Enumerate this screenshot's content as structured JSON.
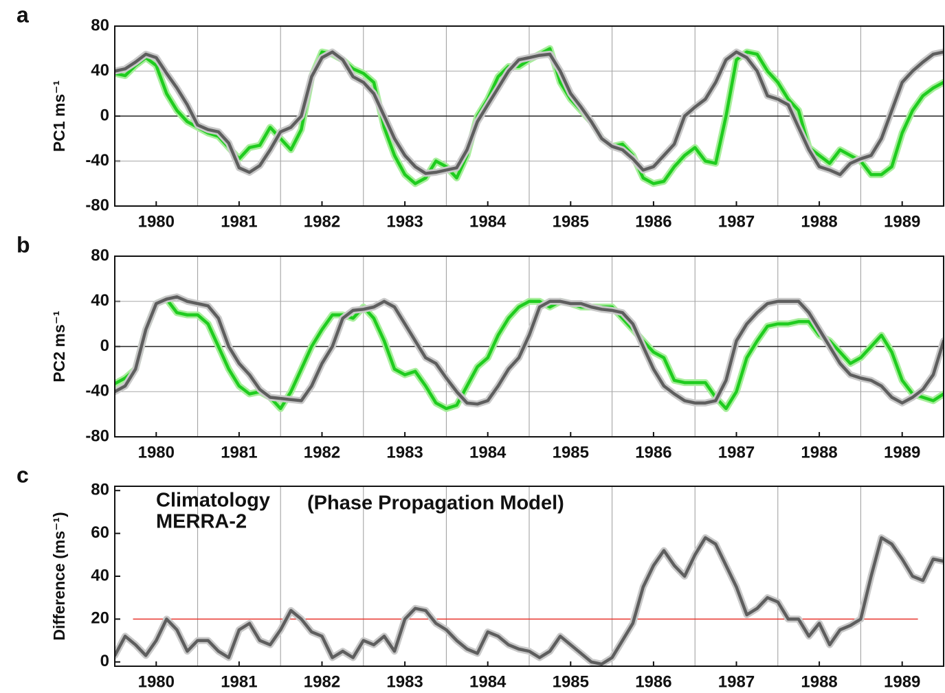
{
  "chart_data": [
    {
      "type": "line",
      "panel_label": "a",
      "ylabel": "PC1 ms⁻¹",
      "x": [
        1980,
        1980.125,
        1980.25,
        1980.375,
        1980.5,
        1980.625,
        1980.75,
        1980.875,
        1981,
        1981.125,
        1981.25,
        1981.375,
        1981.5,
        1981.625,
        1981.75,
        1981.875,
        1982,
        1982.125,
        1982.25,
        1982.375,
        1982.5,
        1982.625,
        1982.75,
        1982.875,
        1983,
        1983.125,
        1983.25,
        1983.375,
        1983.5,
        1983.625,
        1983.75,
        1983.875,
        1984,
        1984.125,
        1984.25,
        1984.375,
        1984.5,
        1984.625,
        1984.75,
        1984.875,
        1985,
        1985.125,
        1985.25,
        1985.375,
        1985.5,
        1985.625,
        1985.75,
        1985.875,
        1986,
        1986.125,
        1986.25,
        1986.375,
        1986.5,
        1986.625,
        1986.75,
        1986.875,
        1987,
        1987.125,
        1987.25,
        1987.375,
        1987.5,
        1987.625,
        1987.75,
        1987.875,
        1988,
        1988.125,
        1988.25,
        1988.375,
        1988.5,
        1988.625,
        1988.75,
        1988.875,
        1989,
        1989.125,
        1989.25,
        1989.375,
        1989.5,
        1989.625,
        1989.75,
        1989.875,
        1990
      ],
      "series": [
        {
          "name": "MERRA-2",
          "color": "#1fcc1f",
          "values": [
            38,
            36,
            45,
            52,
            45,
            20,
            5,
            -5,
            -10,
            -15,
            -18,
            -28,
            -38,
            -28,
            -26,
            -10,
            -20,
            -30,
            -12,
            35,
            57,
            55,
            50,
            42,
            38,
            30,
            -10,
            -35,
            -52,
            -60,
            -55,
            -40,
            -45,
            -55,
            -35,
            0,
            15,
            35,
            44,
            44,
            50,
            55,
            60,
            30,
            15,
            5,
            -5,
            -20,
            -27,
            -25,
            -35,
            -55,
            -60,
            -58,
            -45,
            -35,
            -28,
            -40,
            -42,
            0,
            50,
            57,
            55,
            40,
            30,
            15,
            5,
            -28,
            -35,
            -42,
            -30,
            -35,
            -40,
            -52,
            -52,
            -45,
            -15,
            5,
            18,
            25,
            30
          ]
        },
        {
          "name": "Climatology",
          "color": "#5e5e5e",
          "values": [
            40,
            42,
            48,
            55,
            52,
            38,
            25,
            10,
            -8,
            -12,
            -14,
            -24,
            -46,
            -50,
            -44,
            -30,
            -14,
            -10,
            0,
            35,
            52,
            57,
            50,
            35,
            30,
            20,
            0,
            -20,
            -35,
            -45,
            -51,
            -50,
            -48,
            -46,
            -30,
            -5,
            10,
            25,
            40,
            50,
            52,
            54,
            55,
            40,
            20,
            8,
            -5,
            -20,
            -27,
            -30,
            -38,
            -48,
            -45,
            -35,
            -25,
            0,
            8,
            15,
            30,
            50,
            57,
            52,
            40,
            18,
            15,
            10,
            -10,
            -30,
            -45,
            -48,
            -52,
            -42,
            -38,
            -35,
            -20,
            5,
            30,
            40,
            48,
            55,
            57
          ]
        }
      ],
      "xlim": [
        1980,
        1990
      ],
      "xticks": [
        {
          "value": 1980.5,
          "label": "1980"
        },
        {
          "value": 1981.5,
          "label": "1981"
        },
        {
          "value": 1982.5,
          "label": "1982"
        },
        {
          "value": 1983.5,
          "label": "1983"
        },
        {
          "value": 1984.5,
          "label": "1984"
        },
        {
          "value": 1985.5,
          "label": "1985"
        },
        {
          "value": 1986.5,
          "label": "1986"
        },
        {
          "value": 1987.5,
          "label": "1987"
        },
        {
          "value": 1988.5,
          "label": "1988"
        },
        {
          "value": 1989.5,
          "label": "1989"
        }
      ],
      "xgrid": [
        1981,
        1982,
        1983,
        1984,
        1985,
        1986,
        1987,
        1988,
        1989
      ],
      "ylim": [
        -80,
        80
      ],
      "yticks": [
        -80,
        -40,
        0,
        40,
        80
      ],
      "ygrid": true,
      "zero_line": true
    },
    {
      "type": "line",
      "panel_label": "b",
      "ylabel": "PC2 ms⁻¹",
      "x": [
        1980,
        1980.125,
        1980.25,
        1980.375,
        1980.5,
        1980.625,
        1980.75,
        1980.875,
        1981,
        1981.125,
        1981.25,
        1981.375,
        1981.5,
        1981.625,
        1981.75,
        1981.875,
        1982,
        1982.125,
        1982.25,
        1982.375,
        1982.5,
        1982.625,
        1982.75,
        1982.875,
        1983,
        1983.125,
        1983.25,
        1983.375,
        1983.5,
        1983.625,
        1983.75,
        1983.875,
        1984,
        1984.125,
        1984.25,
        1984.375,
        1984.5,
        1984.625,
        1984.75,
        1984.875,
        1985,
        1985.125,
        1985.25,
        1985.375,
        1985.5,
        1985.625,
        1985.75,
        1985.875,
        1986,
        1986.125,
        1986.25,
        1986.375,
        1986.5,
        1986.625,
        1986.75,
        1986.875,
        1987,
        1987.125,
        1987.25,
        1987.375,
        1987.5,
        1987.625,
        1987.75,
        1987.875,
        1988,
        1988.125,
        1988.25,
        1988.375,
        1988.5,
        1988.625,
        1988.75,
        1988.875,
        1989,
        1989.125,
        1989.25,
        1989.375,
        1989.5,
        1989.625,
        1989.75,
        1989.875,
        1990
      ],
      "series": [
        {
          "name": "MERRA-2",
          "color": "#1fcc1f",
          "values": [
            -33,
            -28,
            -20,
            15,
            38,
            42,
            30,
            28,
            28,
            20,
            0,
            -20,
            -35,
            -42,
            -40,
            -45,
            -55,
            -40,
            -20,
            0,
            15,
            28,
            28,
            25,
            35,
            25,
            5,
            -20,
            -25,
            -22,
            -35,
            -50,
            -55,
            -52,
            -35,
            -18,
            -10,
            10,
            25,
            35,
            40,
            40,
            35,
            40,
            38,
            35,
            35,
            35,
            35,
            25,
            15,
            5,
            -5,
            -10,
            -30,
            -32,
            -32,
            -32,
            -45,
            -55,
            -40,
            -10,
            5,
            18,
            20,
            20,
            22,
            22,
            10,
            5,
            -5,
            -15,
            -10,
            0,
            10,
            -5,
            -30,
            -42,
            -45,
            -48,
            -42
          ]
        },
        {
          "name": "Climatology",
          "color": "#5e5e5e",
          "values": [
            -40,
            -35,
            -20,
            15,
            38,
            42,
            44,
            40,
            38,
            36,
            25,
            0,
            -15,
            -25,
            -38,
            -45,
            -46,
            -47,
            -48,
            -35,
            -15,
            0,
            25,
            32,
            33,
            35,
            40,
            35,
            20,
            5,
            -10,
            -15,
            -28,
            -40,
            -50,
            -51,
            -48,
            -35,
            -20,
            -10,
            10,
            35,
            40,
            40,
            38,
            38,
            35,
            33,
            32,
            30,
            20,
            0,
            -20,
            -35,
            -42,
            -48,
            -50,
            -50,
            -48,
            -30,
            5,
            20,
            30,
            38,
            40,
            40,
            40,
            30,
            15,
            0,
            -15,
            -25,
            -28,
            -30,
            -35,
            -45,
            -50,
            -45,
            -38,
            -25,
            5
          ]
        }
      ],
      "xlim": [
        1980,
        1990
      ],
      "xticks": [
        {
          "value": 1980.5,
          "label": "1980"
        },
        {
          "value": 1981.5,
          "label": "1981"
        },
        {
          "value": 1982.5,
          "label": "1982"
        },
        {
          "value": 1983.5,
          "label": "1983"
        },
        {
          "value": 1984.5,
          "label": "1984"
        },
        {
          "value": 1985.5,
          "label": "1985"
        },
        {
          "value": 1986.5,
          "label": "1986"
        },
        {
          "value": 1987.5,
          "label": "1987"
        },
        {
          "value": 1988.5,
          "label": "1988"
        },
        {
          "value": 1989.5,
          "label": "1989"
        }
      ],
      "xgrid": [
        1981,
        1982,
        1983,
        1984,
        1985,
        1986,
        1987,
        1988,
        1989
      ],
      "ylim": [
        -80,
        80
      ],
      "yticks": [
        -80,
        -40,
        0,
        40,
        80
      ],
      "ygrid": true,
      "zero_line": true
    },
    {
      "type": "line",
      "panel_label": "c",
      "ylabel": "Difference (ms⁻¹)",
      "annotation": "(Phase Propagation Model)",
      "legend": "upper left",
      "x": [
        1980,
        1980.125,
        1980.25,
        1980.375,
        1980.5,
        1980.625,
        1980.75,
        1980.875,
        1981,
        1981.125,
        1981.25,
        1981.375,
        1981.5,
        1981.625,
        1981.75,
        1981.875,
        1982,
        1982.125,
        1982.25,
        1982.375,
        1982.5,
        1982.625,
        1982.75,
        1982.875,
        1983,
        1983.125,
        1983.25,
        1983.375,
        1983.5,
        1983.625,
        1983.75,
        1983.875,
        1984,
        1984.125,
        1984.25,
        1984.375,
        1984.5,
        1984.625,
        1984.75,
        1984.875,
        1985,
        1985.125,
        1985.25,
        1985.375,
        1985.5,
        1985.625,
        1985.75,
        1985.875,
        1986,
        1986.125,
        1986.25,
        1986.375,
        1986.5,
        1986.625,
        1986.75,
        1986.875,
        1987,
        1987.125,
        1987.25,
        1987.375,
        1987.5,
        1987.625,
        1987.75,
        1987.875,
        1988,
        1988.125,
        1988.25,
        1988.375,
        1988.5,
        1988.625,
        1988.75,
        1988.875,
        1989,
        1989.125,
        1989.25,
        1989.375,
        1989.5,
        1989.625,
        1989.75,
        1989.875,
        1990
      ],
      "values": [
        3,
        12,
        8,
        3,
        10,
        20,
        15,
        5,
        10,
        10,
        5,
        2,
        15,
        18,
        10,
        8,
        15,
        24,
        20,
        14,
        12,
        2,
        5,
        2,
        10,
        8,
        12,
        5,
        20,
        25,
        24,
        18,
        15,
        10,
        6,
        4,
        14,
        12,
        8,
        6,
        5,
        2,
        5,
        12,
        8,
        4,
        0,
        -1,
        2,
        10,
        18,
        35,
        45,
        52,
        45,
        40,
        50,
        58,
        55,
        45,
        35,
        22,
        25,
        30,
        28,
        20,
        20,
        12,
        18,
        8,
        15,
        17,
        20,
        40,
        58,
        55,
        48,
        40,
        38,
        48,
        47
      ],
      "color": "#5e5e5e",
      "reference_line": {
        "y": 20,
        "x": [
          1980.22,
          1989.69
        ],
        "color": "#e8342c"
      },
      "xlim": [
        1980,
        1990
      ],
      "xticks": [
        {
          "value": 1980.5,
          "label": "1980"
        },
        {
          "value": 1981.5,
          "label": "1981"
        },
        {
          "value": 1982.5,
          "label": "1982"
        },
        {
          "value": 1983.5,
          "label": "1983"
        },
        {
          "value": 1984.5,
          "label": "1984"
        },
        {
          "value": 1985.5,
          "label": "1985"
        },
        {
          "value": 1986.5,
          "label": "1986"
        },
        {
          "value": 1987.5,
          "label": "1987"
        },
        {
          "value": 1988.5,
          "label": "1988"
        },
        {
          "value": 1989.5,
          "label": "1989"
        }
      ],
      "xgrid": [
        1981,
        1982,
        1983,
        1984,
        1985,
        1986,
        1987,
        1988,
        1989
      ],
      "ylim": [
        -2,
        82
      ],
      "yticks": [
        0,
        20,
        40,
        60,
        80
      ],
      "ygrid": false,
      "zero_line": false
    }
  ]
}
